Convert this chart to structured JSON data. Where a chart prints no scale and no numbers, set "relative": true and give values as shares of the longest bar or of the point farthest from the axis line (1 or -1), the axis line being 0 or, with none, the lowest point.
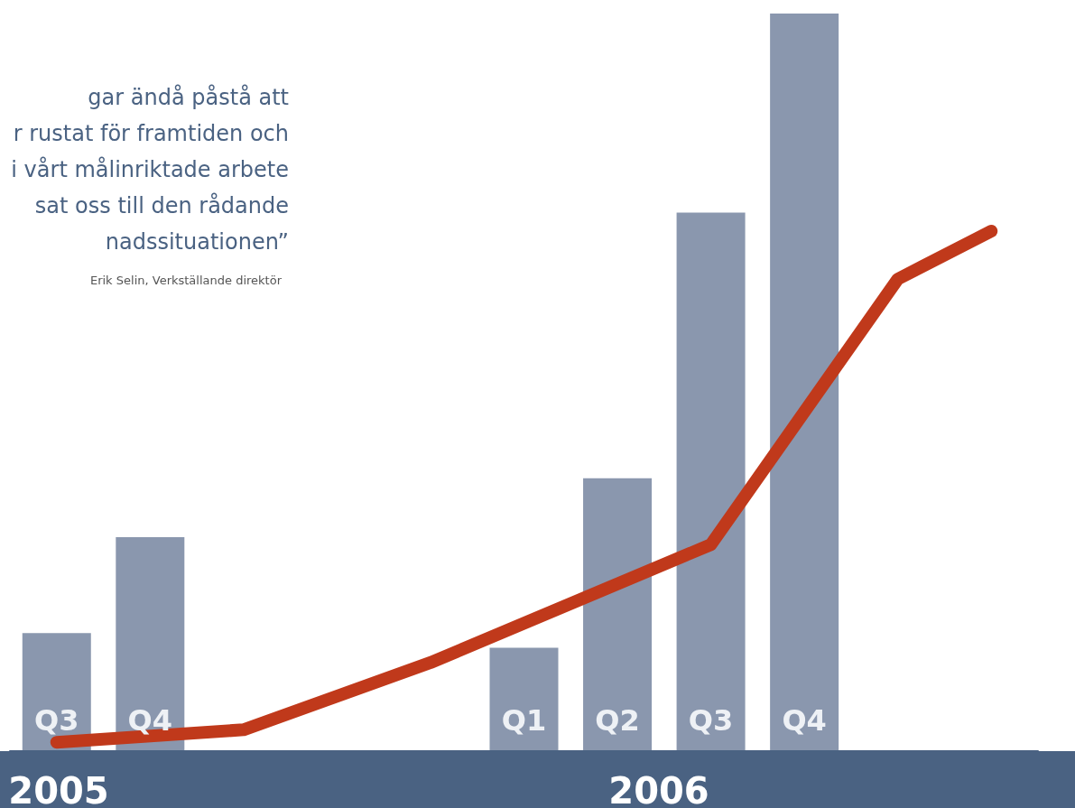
{
  "chart_data": {
    "type": "bar",
    "relative": true,
    "categories": [
      "Q3",
      "Q4",
      null,
      null,
      null,
      "Q1",
      "Q2",
      "Q3",
      "Q4",
      null,
      null
    ],
    "series": [
      {
        "color": "#8a97ae",
        "values": [
          0.16,
          0.29,
          null,
          null,
          null,
          0.14,
          0.37,
          0.73,
          1.0,
          null,
          null
        ]
      },
      {
        "type": "line",
        "color": "#c0391b",
        "values": [
          0.012,
          null,
          0.029,
          null,
          0.12,
          null,
          null,
          0.28,
          null,
          0.64,
          0.705
        ]
      }
    ],
    "annotations": [
      "gar ändå påstå att\nr rustat för framtiden och\ni vårt målinriktade arbete\nsat oss till den rådande\nnadssituationen”",
      "Erik Selin, Verkställande direktör",
      "2005",
      "2006"
    ]
  }
}
